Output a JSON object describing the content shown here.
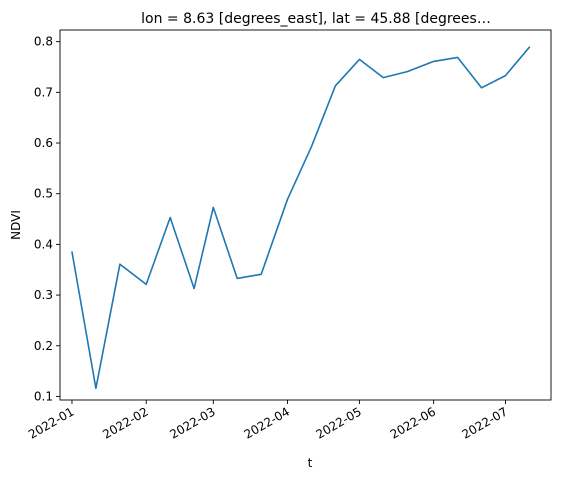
{
  "chart_data": {
    "type": "line",
    "title": "lon = 8.63 [degrees_east], lat = 45.88 [degrees…",
    "xlabel": "t",
    "ylabel": "NDVI",
    "x_axis_type": "date",
    "xlim": [
      "2021-12-27",
      "2022-07-20"
    ],
    "ylim": [
      0.093,
      0.823
    ],
    "grid": false,
    "legend": false,
    "x_ticks": [
      {
        "value": "2022-01-01",
        "label": "2022-01"
      },
      {
        "value": "2022-02-01",
        "label": "2022-02"
      },
      {
        "value": "2022-03-01",
        "label": "2022-03"
      },
      {
        "value": "2022-04-01",
        "label": "2022-04"
      },
      {
        "value": "2022-05-01",
        "label": "2022-05"
      },
      {
        "value": "2022-06-01",
        "label": "2022-06"
      },
      {
        "value": "2022-07-01",
        "label": "2022-07"
      }
    ],
    "y_ticks": [
      {
        "value": 0.1,
        "label": "0.1"
      },
      {
        "value": 0.2,
        "label": "0.2"
      },
      {
        "value": 0.3,
        "label": "0.3"
      },
      {
        "value": 0.4,
        "label": "0.4"
      },
      {
        "value": 0.5,
        "label": "0.5"
      },
      {
        "value": 0.6,
        "label": "0.6"
      },
      {
        "value": 0.7,
        "label": "0.7"
      },
      {
        "value": 0.8,
        "label": "0.8"
      }
    ],
    "series": [
      {
        "color": "#1f77b4",
        "x": [
          "2022-01-01",
          "2022-01-11",
          "2022-01-21",
          "2022-02-01",
          "2022-02-11",
          "2022-02-21",
          "2022-03-01",
          "2022-03-11",
          "2022-03-21",
          "2022-04-01",
          "2022-04-11",
          "2022-04-21",
          "2022-05-01",
          "2022-05-11",
          "2022-05-21",
          "2022-06-01",
          "2022-06-11",
          "2022-06-21",
          "2022-07-01",
          "2022-07-11"
        ],
        "y": [
          0.385,
          0.116,
          0.361,
          0.321,
          0.453,
          0.313,
          0.473,
          0.333,
          0.341,
          0.489,
          0.593,
          0.713,
          0.765,
          0.729,
          0.741,
          0.761,
          0.769,
          0.709,
          0.733,
          0.789
        ]
      }
    ]
  }
}
